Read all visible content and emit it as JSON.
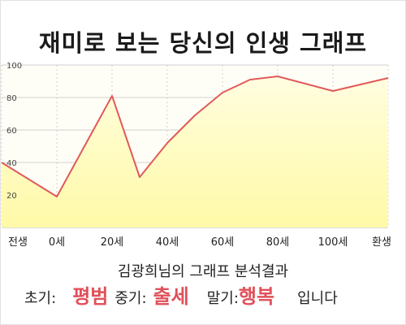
{
  "title": "재미로 보는 당신의 인생 그래프",
  "summary": "김광희님의 그래프 분석결과",
  "stages": {
    "early_label": "초기:",
    "early_value": "평범",
    "middle_label": "중기:",
    "middle_value": "출세",
    "late_label": "말기:",
    "late_value": "행복",
    "ending": "입니다"
  },
  "colors": {
    "line": "#e05a5a",
    "area": "#fffcbf",
    "highlight": "#e0505a",
    "grid": "#d0d0d0"
  },
  "chart_data": {
    "type": "area",
    "title": "재미로 보는 당신의 인생 그래프",
    "xlabel": "",
    "ylabel": "",
    "ylim": [
      0,
      100
    ],
    "yticks": [
      20,
      40,
      60,
      80,
      100
    ],
    "xticks": [
      {
        "at": 0,
        "label": "전생"
      },
      {
        "at": 1,
        "label": "0세"
      },
      {
        "at": 2,
        "label": "20세"
      },
      {
        "at": 3,
        "label": "40세"
      },
      {
        "at": 4,
        "label": "60세"
      },
      {
        "at": 5,
        "label": "80세"
      },
      {
        "at": 6,
        "label": "100세"
      },
      {
        "at": 7,
        "label": "환생"
      }
    ],
    "x": [
      0,
      1,
      2,
      2.5,
      3,
      3.5,
      4,
      4.5,
      5,
      6,
      7
    ],
    "values": [
      40,
      19,
      81,
      31,
      52,
      69,
      83,
      91,
      93,
      84,
      92
    ],
    "grid": true
  }
}
